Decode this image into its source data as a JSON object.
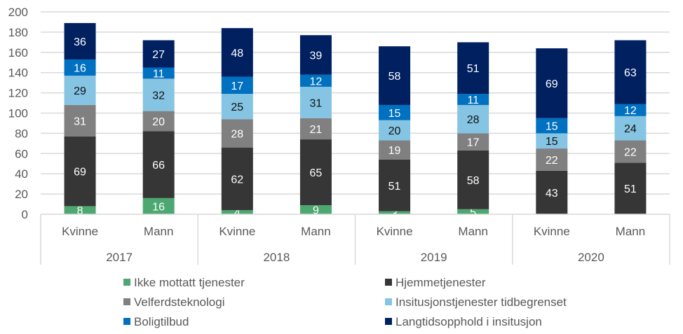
{
  "chart_data": {
    "type": "bar",
    "stacked": true,
    "title": "",
    "xlabel": "",
    "ylabel": "",
    "ylim": [
      0,
      200
    ],
    "yticks": [
      0,
      20,
      40,
      60,
      80,
      100,
      120,
      140,
      160,
      180,
      200
    ],
    "grid": true,
    "legend_position": "bottom",
    "groups": [
      "2017",
      "2018",
      "2019",
      "2020"
    ],
    "categories": [
      "Kvinne",
      "Mann",
      "Kvinne",
      "Mann",
      "Kvinne",
      "Mann",
      "Kvinne",
      "Mann"
    ],
    "series": [
      {
        "name": "Ikke mottatt tjenester",
        "color": "#4CA870",
        "label_color": "#ffffff",
        "values": [
          8,
          16,
          4,
          9,
          3,
          5,
          0,
          0
        ]
      },
      {
        "name": "Hjemmetjenester",
        "color": "#363636",
        "label_color": "#ffffff",
        "values": [
          69,
          66,
          62,
          65,
          51,
          58,
          43,
          51
        ]
      },
      {
        "name": "Velferdsteknologi",
        "color": "#808080",
        "label_color": "#ffffff",
        "values": [
          31,
          20,
          28,
          21,
          19,
          17,
          22,
          22
        ]
      },
      {
        "name": "Insitusjonstjenester tidbegrenset",
        "color": "#85C4E2",
        "label_color": "#111111",
        "values": [
          29,
          32,
          25,
          31,
          20,
          28,
          15,
          24
        ]
      },
      {
        "name": "Boligtilbud",
        "color": "#0070C0",
        "label_color": "#ffffff",
        "values": [
          16,
          11,
          17,
          12,
          15,
          11,
          15,
          12
        ]
      },
      {
        "name": "Langtidsopphold i insitusjon",
        "color": "#002060",
        "label_color": "#ffffff",
        "values": [
          36,
          27,
          48,
          39,
          58,
          51,
          69,
          63
        ]
      }
    ]
  }
}
